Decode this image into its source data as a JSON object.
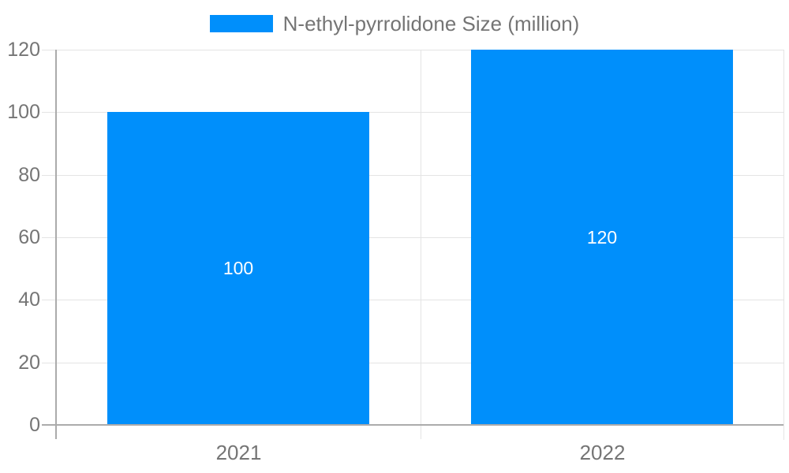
{
  "chart_data": {
    "type": "bar",
    "title": "",
    "xlabel": "",
    "ylabel": "",
    "categories": [
      "2021",
      "2022"
    ],
    "series": [
      {
        "name": "N-ethyl-pyrrolidone Size (million)",
        "values": [
          100,
          120
        ],
        "color": "#008FFB"
      }
    ],
    "data_labels": [
      "100",
      "120"
    ],
    "yticks": [
      0,
      20,
      40,
      60,
      80,
      100,
      120
    ],
    "ylim": [
      0,
      120
    ],
    "grid": true,
    "legend_position": "top-center",
    "bar_width_fraction": 0.72
  },
  "colors": {
    "bar": "#008FFB",
    "axis_label": "#757575",
    "legend_label": "#757575",
    "data_label": "#FFFFFF",
    "gridline": "#E4E4E4",
    "axis_line": "#ABABAB",
    "background": "#FFFFFF"
  }
}
